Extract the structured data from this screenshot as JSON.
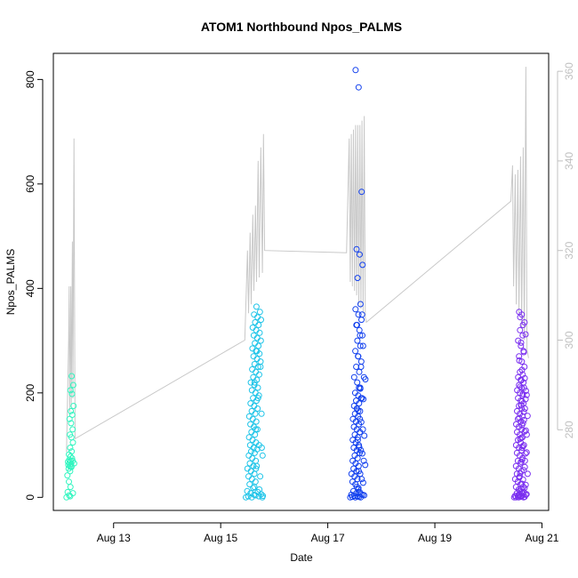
{
  "chart_data": {
    "type": "scatter",
    "title": "ATOM1 Northbound Npos_PALMS",
    "xlabel": "Date",
    "ylabel": "Npos_PALMS",
    "xlim": [
      "2023-08-11T21:00",
      "2023-08-21T03:00"
    ],
    "ylim": [
      -25,
      850
    ],
    "y2lim": [
      262,
      364
    ],
    "grid": false,
    "legend": "none",
    "x_ticks": [
      "Aug 13",
      "Aug 15",
      "Aug 17",
      "Aug 19",
      "Aug 21"
    ],
    "y_ticks": [
      0,
      200,
      400,
      600,
      800
    ],
    "y2_ticks": [
      280,
      300,
      320,
      340,
      360
    ],
    "colors": {
      "segment1": "#33f5c0",
      "segment2": "#1ec4e8",
      "segment3": "#1240ee",
      "segment4": "#7a2ff0",
      "secondary_line": "#c8c8c8",
      "axes": "#000000",
      "right_axis": "#c0c0c0"
    },
    "series": [
      {
        "color_key": "segment1",
        "day_range": [
          12.12,
          12.28
        ],
        "values": [
          0,
          4,
          10,
          20,
          30,
          42,
          50,
          55,
          58,
          60,
          62,
          64,
          66,
          68,
          70,
          72,
          75,
          78,
          82,
          88,
          95,
          105,
          115,
          120,
          130,
          142,
          150,
          158,
          165,
          175,
          198,
          205,
          215,
          232,
          2,
          8,
          60,
          65,
          70,
          58
        ]
      },
      {
        "color_key": "segment2",
        "day_range": [
          15.47,
          15.82
        ],
        "values": [
          0,
          0,
          2,
          5,
          8,
          12,
          18,
          25,
          30,
          35,
          40,
          45,
          50,
          55,
          60,
          65,
          70,
          75,
          80,
          85,
          88,
          92,
          95,
          100,
          105,
          110,
          115,
          120,
          125,
          130,
          135,
          140,
          145,
          150,
          155,
          160,
          165,
          170,
          175,
          180,
          185,
          190,
          195,
          200,
          205,
          210,
          215,
          220,
          225,
          230,
          235,
          240,
          245,
          250,
          255,
          260,
          265,
          270,
          275,
          280,
          285,
          290,
          295,
          300,
          305,
          310,
          315,
          320,
          325,
          330,
          335,
          340,
          345,
          350,
          355,
          365,
          0,
          2,
          4,
          6,
          10,
          20,
          40,
          60,
          80,
          100,
          130,
          160,
          190,
          220,
          250,
          280,
          3,
          15,
          55,
          95
        ]
      },
      {
        "color_key": "segment3",
        "day_range": [
          17.42,
          17.72
        ],
        "values": [
          0,
          0,
          1,
          2,
          3,
          5,
          8,
          12,
          18,
          25,
          30,
          35,
          40,
          45,
          50,
          55,
          60,
          65,
          70,
          75,
          80,
          85,
          90,
          95,
          100,
          105,
          110,
          115,
          120,
          125,
          130,
          135,
          140,
          145,
          150,
          155,
          160,
          165,
          170,
          175,
          180,
          185,
          190,
          195,
          200,
          210,
          220,
          230,
          240,
          250,
          260,
          270,
          280,
          290,
          300,
          310,
          320,
          330,
          340,
          350,
          360,
          370,
          420,
          445,
          465,
          475,
          585,
          785,
          818,
          0,
          2,
          5,
          10,
          20,
          35,
          50,
          70,
          90,
          110,
          130,
          150,
          170,
          190,
          210,
          230,
          250,
          270,
          290,
          310,
          330,
          350,
          1,
          4,
          6,
          15,
          28,
          45,
          62,
          84,
          96,
          118,
          144,
          166,
          188,
          208,
          226
        ]
      },
      {
        "color_key": "segment4",
        "day_range": [
          20.48,
          20.75
        ],
        "values": [
          0,
          0,
          0,
          1,
          2,
          3,
          5,
          8,
          10,
          15,
          20,
          25,
          30,
          35,
          40,
          45,
          50,
          55,
          60,
          65,
          70,
          75,
          80,
          85,
          90,
          95,
          100,
          105,
          110,
          115,
          120,
          125,
          130,
          135,
          140,
          145,
          150,
          155,
          160,
          165,
          170,
          175,
          180,
          185,
          190,
          195,
          200,
          205,
          210,
          215,
          220,
          225,
          230,
          235,
          240,
          250,
          260,
          270,
          280,
          290,
          300,
          310,
          320,
          335,
          350,
          355,
          0,
          2,
          4,
          8,
          12,
          18,
          26,
          38,
          52,
          68,
          84,
          98,
          112,
          126,
          138,
          152,
          164,
          176,
          188,
          198,
          212,
          228,
          244,
          262,
          278,
          296,
          312,
          330,
          345,
          1,
          3,
          6,
          10,
          16,
          24,
          34,
          46,
          58,
          72,
          86,
          100,
          114,
          128,
          142,
          156,
          170,
          184,
          196,
          210,
          224,
          5,
          20,
          45,
          70,
          95,
          120,
          148,
          176,
          204
        ]
      }
    ],
    "secondary_line": {
      "name": "",
      "axis": "right",
      "points": [
        [
          12.12,
          275
        ],
        [
          12.16,
          300
        ],
        [
          12.17,
          312
        ],
        [
          12.18,
          284
        ],
        [
          12.2,
          312
        ],
        [
          12.21,
          285
        ],
        [
          12.23,
          322
        ],
        [
          12.24,
          287
        ],
        [
          12.26,
          345
        ],
        [
          12.28,
          278
        ],
        [
          15.45,
          300
        ],
        [
          15.5,
          320
        ],
        [
          15.52,
          306
        ],
        [
          15.55,
          324
        ],
        [
          15.57,
          308
        ],
        [
          15.6,
          328
        ],
        [
          15.62,
          311
        ],
        [
          15.65,
          330
        ],
        [
          15.67,
          313
        ],
        [
          15.7,
          340
        ],
        [
          15.72,
          314
        ],
        [
          15.75,
          343
        ],
        [
          15.78,
          315
        ],
        [
          15.8,
          346
        ],
        [
          15.82,
          320
        ],
        [
          17.35,
          319.5
        ],
        [
          17.4,
          345
        ],
        [
          17.42,
          313
        ],
        [
          17.44,
          346
        ],
        [
          17.46,
          312
        ],
        [
          17.48,
          347
        ],
        [
          17.5,
          311
        ],
        [
          17.52,
          348
        ],
        [
          17.54,
          310
        ],
        [
          17.56,
          348
        ],
        [
          17.58,
          308
        ],
        [
          17.6,
          348
        ],
        [
          17.62,
          307
        ],
        [
          17.64,
          349
        ],
        [
          17.66,
          306
        ],
        [
          17.68,
          350
        ],
        [
          17.7,
          305
        ],
        [
          17.72,
          304
        ],
        [
          20.42,
          331
        ],
        [
          20.45,
          339
        ],
        [
          20.47,
          312
        ],
        [
          20.5,
          337
        ],
        [
          20.52,
          308
        ],
        [
          20.55,
          338
        ],
        [
          20.57,
          306
        ],
        [
          20.6,
          341
        ],
        [
          20.62,
          303
        ],
        [
          20.65,
          343
        ],
        [
          20.67,
          300
        ],
        [
          20.7,
          361
        ],
        [
          20.72,
          298
        ],
        [
          20.75,
          296
        ]
      ]
    }
  }
}
